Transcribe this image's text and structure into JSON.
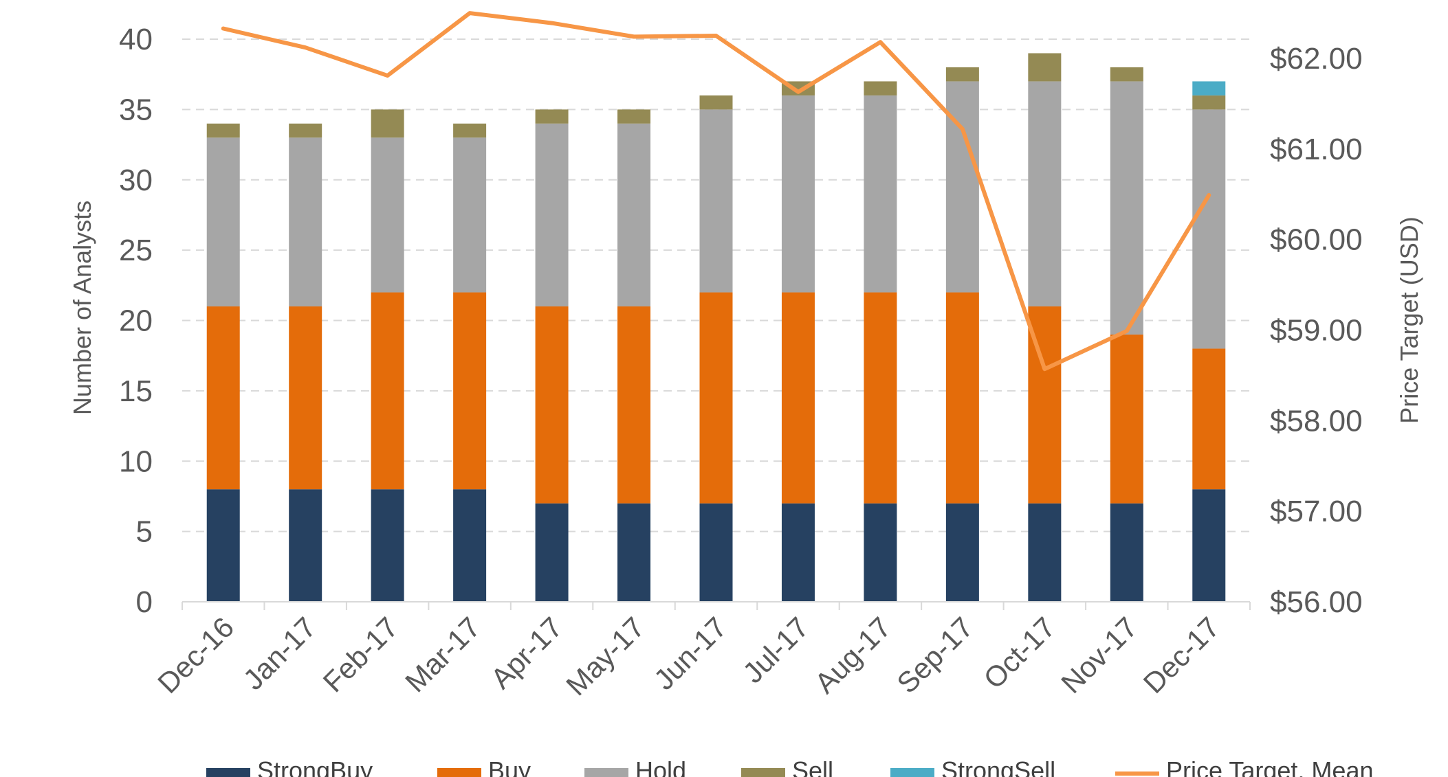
{
  "chart_data": {
    "type": "bar",
    "stacked": true,
    "title": "",
    "categories": [
      "Dec-16",
      "Jan-17",
      "Feb-17",
      "Mar-17",
      "Apr-17",
      "May-17",
      "Jun-17",
      "Jul-17",
      "Aug-17",
      "Sep-17",
      "Oct-17",
      "Nov-17",
      "Dec-17"
    ],
    "ylabel": "Number of Analysts",
    "ylim": [
      0,
      40
    ],
    "yticks": [
      0,
      5,
      10,
      15,
      20,
      25,
      30,
      35,
      40
    ],
    "y2label": "Price Target (USD)",
    "y2lim": [
      56,
      62
    ],
    "y2ticks": [
      "$56.00",
      "$57.00",
      "$58.00",
      "$59.00",
      "$60.00",
      "$61.00",
      "$62.00"
    ],
    "grid": true,
    "legend_position": "bottom",
    "series": [
      {
        "name": "StrongBuy",
        "type": "bar",
        "axis": "left",
        "color": "#264161",
        "values": [
          8,
          8,
          8,
          8,
          7,
          7,
          7,
          7,
          7,
          7,
          7,
          7,
          8
        ]
      },
      {
        "name": "Buy",
        "type": "bar",
        "axis": "left",
        "color": "#E46C0A",
        "values": [
          13,
          13,
          14,
          14,
          14,
          14,
          15,
          15,
          15,
          15,
          14,
          12,
          10
        ]
      },
      {
        "name": "Hold",
        "type": "bar",
        "axis": "left",
        "color": "#A6A6A6",
        "values": [
          12,
          12,
          11,
          11,
          13,
          13,
          13,
          14,
          14,
          15,
          16,
          18,
          17
        ]
      },
      {
        "name": "Sell",
        "type": "bar",
        "axis": "left",
        "color": "#948A54",
        "values": [
          1,
          1,
          2,
          1,
          1,
          1,
          1,
          1,
          1,
          1,
          2,
          1,
          1
        ]
      },
      {
        "name": "StrongSell",
        "type": "bar",
        "axis": "left",
        "color": "#4BACC6",
        "values": [
          0,
          0,
          0,
          0,
          0,
          0,
          0,
          0,
          0,
          0,
          0,
          0,
          1
        ]
      },
      {
        "name": "Price Target, Mean",
        "type": "line",
        "axis": "right",
        "color": "#F79646",
        "values": [
          62.33,
          62.12,
          61.81,
          62.5,
          62.39,
          62.24,
          62.25,
          61.63,
          62.18,
          61.22,
          58.57,
          58.99,
          60.49
        ]
      }
    ]
  }
}
